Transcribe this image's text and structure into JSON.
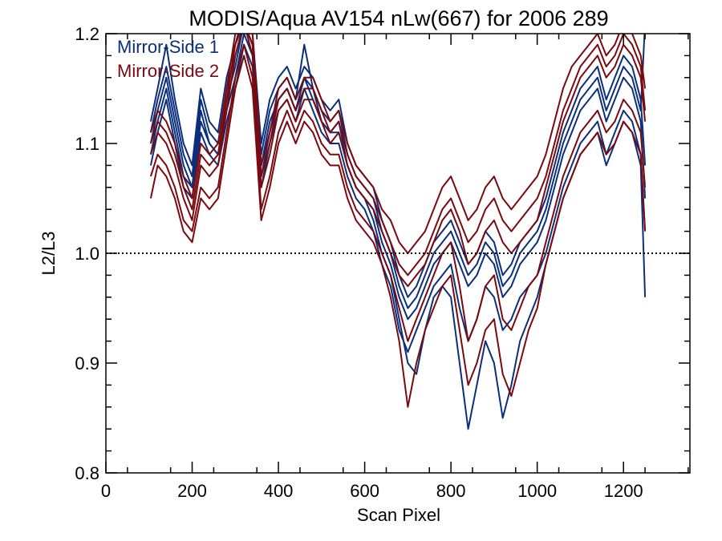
{
  "chart_data": {
    "type": "line",
    "title": "MODIS/Aqua AV154 nLw(667) for 2006 289",
    "xlabel": "Scan Pixel",
    "ylabel": "L2/L3",
    "xlim": [
      0,
      1354
    ],
    "ylim": [
      0.8,
      1.2
    ],
    "x_ticks": [
      0,
      200,
      400,
      600,
      800,
      1000,
      1200
    ],
    "y_ticks": [
      0.8,
      0.9,
      1.0,
      1.1,
      1.2
    ],
    "x_tick_labels": [
      "0",
      "200",
      "400",
      "600",
      "800",
      "1000",
      "1200"
    ],
    "y_tick_labels": [
      "0.8",
      "0.9",
      "1.0",
      "1.1",
      "1.2"
    ],
    "reference_line": {
      "y": 1.0,
      "style": "dotted"
    },
    "legend_position": "top-left",
    "x": [
      104,
      120,
      140,
      160,
      180,
      200,
      220,
      240,
      260,
      280,
      300,
      320,
      340,
      360,
      380,
      400,
      420,
      440,
      460,
      480,
      500,
      520,
      540,
      560,
      580,
      600,
      620,
      640,
      660,
      680,
      700,
      720,
      740,
      760,
      780,
      800,
      820,
      840,
      860,
      880,
      900,
      920,
      940,
      960,
      980,
      1000,
      1020,
      1040,
      1060,
      1080,
      1100,
      1120,
      1140,
      1160,
      1180,
      1200,
      1220,
      1240,
      1250
    ],
    "series": [
      {
        "name": "Mirror-Side 1",
        "color": "#0b2f7a",
        "members": [
          [
            1.1,
            1.13,
            1.16,
            1.12,
            1.08,
            1.06,
            1.13,
            1.1,
            1.09,
            1.14,
            1.17,
            1.21,
            1.19,
            1.08,
            1.12,
            1.14,
            1.15,
            1.13,
            1.16,
            1.15,
            1.12,
            1.11,
            1.12,
            1.08,
            1.06,
            1.05,
            1.04,
            1.01,
            0.99,
            0.96,
            0.94,
            0.95,
            0.97,
            0.99,
            1.0,
            1.01,
            0.99,
            0.97,
            0.98,
            1.0,
            0.99,
            0.96,
            0.97,
            0.99,
            1.0,
            1.01,
            1.03,
            1.06,
            1.09,
            1.11,
            1.13,
            1.14,
            1.15,
            1.12,
            1.14,
            1.16,
            1.15,
            1.12,
            1.05
          ],
          [
            1.08,
            1.11,
            1.14,
            1.1,
            1.06,
            1.05,
            1.11,
            1.09,
            1.08,
            1.12,
            1.15,
            1.19,
            1.17,
            1.06,
            1.1,
            1.13,
            1.14,
            1.12,
            1.15,
            1.13,
            1.11,
            1.1,
            1.1,
            1.07,
            1.05,
            1.04,
            1.02,
            0.99,
            0.97,
            0.93,
            0.91,
            0.93,
            0.95,
            0.97,
            0.98,
            0.99,
            0.95,
            0.92,
            0.94,
            0.97,
            0.96,
            0.93,
            0.94,
            0.96,
            0.97,
            0.98,
            1.0,
            1.03,
            1.06,
            1.08,
            1.1,
            1.11,
            1.12,
            1.09,
            1.11,
            1.13,
            1.12,
            1.09,
            1.02
          ],
          [
            1.12,
            1.15,
            1.19,
            1.14,
            1.1,
            1.08,
            1.15,
            1.12,
            1.11,
            1.16,
            1.19,
            1.22,
            1.2,
            1.1,
            1.14,
            1.16,
            1.17,
            1.15,
            1.17,
            1.16,
            1.14,
            1.13,
            1.14,
            1.1,
            1.08,
            1.07,
            1.06,
            1.03,
            1.01,
            0.98,
            0.96,
            0.97,
            0.99,
            1.01,
            1.02,
            1.03,
            1.01,
            0.99,
            1.0,
            1.02,
            1.01,
            0.98,
            0.99,
            1.01,
            1.02,
            1.03,
            1.05,
            1.08,
            1.11,
            1.13,
            1.15,
            1.16,
            1.17,
            1.14,
            1.16,
            1.18,
            1.17,
            1.14,
            1.08
          ],
          [
            1.09,
            1.12,
            1.15,
            1.11,
            1.07,
            1.06,
            1.12,
            1.1,
            1.09,
            1.13,
            1.16,
            1.2,
            1.18,
            1.07,
            1.11,
            1.14,
            1.15,
            1.13,
            1.16,
            1.14,
            1.12,
            1.11,
            1.11,
            1.08,
            1.06,
            1.05,
            1.03,
            1.0,
            0.98,
            0.94,
            0.9,
            0.89,
            0.93,
            0.96,
            0.97,
            0.96,
            0.9,
            0.84,
            0.88,
            0.92,
            0.9,
            0.85,
            0.88,
            0.92,
            0.94,
            0.96,
            0.99,
            1.02,
            1.05,
            1.07,
            1.09,
            1.1,
            1.11,
            1.08,
            1.1,
            1.12,
            1.11,
            1.08,
            0.96
          ],
          [
            1.11,
            1.14,
            1.17,
            1.13,
            1.09,
            1.07,
            1.14,
            1.11,
            1.1,
            1.15,
            1.18,
            1.21,
            1.19,
            1.09,
            1.13,
            1.15,
            1.16,
            1.14,
            1.19,
            1.15,
            1.13,
            1.12,
            1.13,
            1.09,
            1.07,
            1.06,
            1.05,
            1.02,
            1.0,
            0.97,
            0.95,
            0.96,
            0.98,
            1.0,
            1.01,
            1.02,
            1.0,
            0.98,
            0.99,
            1.01,
            1.0,
            0.97,
            0.98,
            1.0,
            1.01,
            1.02,
            1.04,
            1.07,
            1.1,
            1.12,
            1.14,
            1.15,
            1.16,
            1.13,
            1.15,
            1.17,
            1.16,
            1.13,
            1.21
          ]
        ]
      },
      {
        "name": "Mirror-Side 2",
        "color": "#7a0a10",
        "members": [
          [
            1.09,
            1.11,
            1.1,
            1.08,
            1.05,
            1.03,
            1.08,
            1.07,
            1.08,
            1.13,
            1.18,
            1.21,
            1.18,
            1.06,
            1.09,
            1.13,
            1.14,
            1.12,
            1.14,
            1.14,
            1.12,
            1.1,
            1.11,
            1.08,
            1.06,
            1.05,
            1.04,
            1.02,
            1.0,
            0.98,
            0.97,
            0.98,
            0.99,
            1.01,
            1.03,
            1.04,
            1.02,
            0.99,
            1.0,
            1.02,
            1.03,
            1.01,
            1.0,
            1.01,
            1.02,
            1.03,
            1.06,
            1.09,
            1.12,
            1.14,
            1.16,
            1.17,
            1.18,
            1.16,
            1.17,
            1.19,
            1.18,
            1.16,
            1.12
          ],
          [
            1.07,
            1.09,
            1.08,
            1.06,
            1.03,
            1.02,
            1.06,
            1.05,
            1.06,
            1.11,
            1.16,
            1.19,
            1.16,
            1.04,
            1.07,
            1.11,
            1.13,
            1.11,
            1.13,
            1.12,
            1.1,
            1.09,
            1.09,
            1.06,
            1.04,
            1.03,
            1.02,
            1.0,
            0.98,
            0.95,
            0.92,
            0.94,
            0.96,
            0.98,
            1.0,
            1.01,
            0.97,
            0.92,
            0.94,
            0.97,
            0.98,
            0.94,
            0.93,
            0.95,
            0.97,
            0.98,
            1.01,
            1.04,
            1.07,
            1.09,
            1.11,
            1.12,
            1.13,
            1.11,
            1.12,
            1.14,
            1.13,
            1.11,
            1.06
          ],
          [
            1.11,
            1.13,
            1.12,
            1.1,
            1.07,
            1.05,
            1.1,
            1.09,
            1.1,
            1.15,
            1.2,
            1.22,
            1.2,
            1.08,
            1.11,
            1.15,
            1.16,
            1.14,
            1.16,
            1.16,
            1.14,
            1.12,
            1.13,
            1.1,
            1.08,
            1.07,
            1.06,
            1.04,
            1.03,
            1.01,
            1.0,
            1.01,
            1.02,
            1.04,
            1.06,
            1.07,
            1.05,
            1.03,
            1.04,
            1.06,
            1.07,
            1.05,
            1.04,
            1.05,
            1.06,
            1.07,
            1.09,
            1.12,
            1.15,
            1.17,
            1.18,
            1.19,
            1.2,
            1.18,
            1.19,
            1.21,
            1.2,
            1.18,
            1.15
          ],
          [
            1.05,
            1.08,
            1.07,
            1.05,
            1.02,
            1.01,
            1.05,
            1.04,
            1.05,
            1.1,
            1.15,
            1.18,
            1.15,
            1.03,
            1.06,
            1.1,
            1.12,
            1.1,
            1.12,
            1.11,
            1.09,
            1.08,
            1.08,
            1.05,
            1.03,
            1.02,
            1.01,
            0.99,
            0.96,
            0.92,
            0.86,
            0.9,
            0.93,
            0.95,
            0.97,
            0.98,
            0.93,
            0.88,
            0.9,
            0.93,
            0.94,
            0.89,
            0.87,
            0.9,
            0.93,
            0.95,
            0.99,
            1.02,
            1.05,
            1.07,
            1.09,
            1.1,
            1.11,
            1.09,
            1.1,
            1.12,
            1.11,
            1.09,
            1.02
          ],
          [
            1.1,
            1.12,
            1.11,
            1.09,
            1.06,
            1.04,
            1.09,
            1.08,
            1.09,
            1.14,
            1.19,
            1.21,
            1.19,
            1.07,
            1.1,
            1.14,
            1.15,
            1.13,
            1.15,
            1.15,
            1.13,
            1.11,
            1.12,
            1.09,
            1.07,
            1.06,
            1.05,
            1.03,
            1.01,
            0.99,
            0.98,
            0.99,
            1.0,
            1.02,
            1.04,
            1.05,
            1.03,
            1.01,
            1.02,
            1.04,
            1.05,
            1.03,
            1.02,
            1.03,
            1.04,
            1.05,
            1.07,
            1.1,
            1.13,
            1.15,
            1.17,
            1.18,
            1.19,
            1.17,
            1.18,
            1.2,
            1.19,
            1.17,
            1.13
          ]
        ]
      }
    ]
  }
}
